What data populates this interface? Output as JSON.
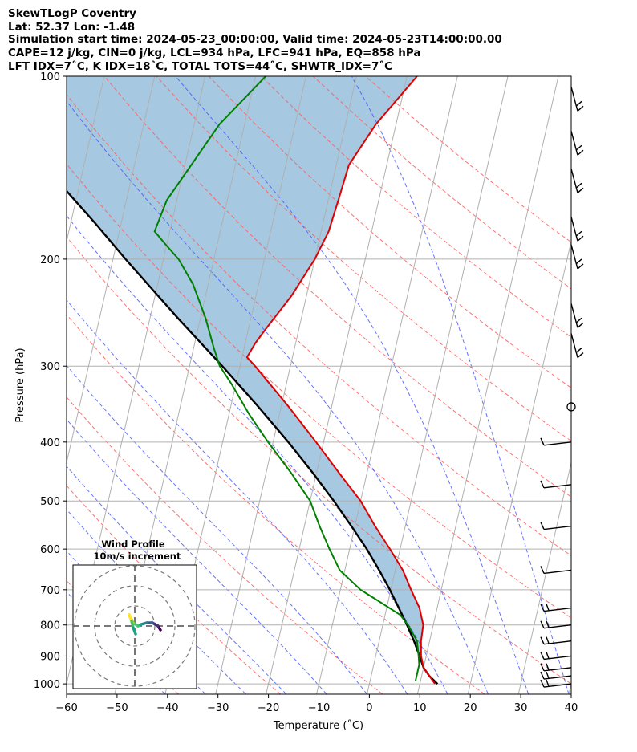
{
  "chart_data": {
    "type": "line",
    "title_lines": [
      "SkewTLogP Coventry",
      "Lat: 52.37   Lon: -1.48",
      "Simulation start time: 2024-05-23_00:00:00, Valid time: 2024-05-23T14:00:00.00",
      "CAPE=12 j/kg, CIN=0 j/kg, LCL=934 hPa, LFC=941 hPa, EQ=858 hPa",
      "LFT IDX=7˚C, K IDX=18˚C, TOTAL TOTS=44˚C, SHWTR_IDX=7˚C"
    ],
    "xlabel": "Temperature (˚C)",
    "ylabel": "Pressure (hPa)",
    "xlim": [
      -60,
      40
    ],
    "ylim": [
      1040,
      100
    ],
    "y_scale": "log",
    "skew": "skewed isotherms",
    "grid": true,
    "x_ticks": [
      -60,
      -50,
      -40,
      -30,
      -20,
      -10,
      0,
      10,
      20,
      30,
      40
    ],
    "y_ticks": [
      1000,
      900,
      800,
      700,
      600,
      500,
      400,
      300,
      200,
      100
    ],
    "series": [
      {
        "color": "#e00000",
        "points": [
          [
            1000,
            13
          ],
          [
            970,
            11.5
          ],
          [
            940,
            10
          ],
          [
            900,
            9
          ],
          [
            850,
            8.3
          ],
          [
            800,
            8
          ],
          [
            750,
            6.5
          ],
          [
            700,
            4
          ],
          [
            650,
            1.5
          ],
          [
            600,
            -2
          ],
          [
            550,
            -6
          ],
          [
            500,
            -10
          ],
          [
            450,
            -15.5
          ],
          [
            400,
            -21.5
          ],
          [
            350,
            -28.5
          ],
          [
            300,
            -37
          ],
          [
            290,
            -39
          ],
          [
            275,
            -38
          ],
          [
            260,
            -36.5
          ],
          [
            230,
            -33
          ],
          [
            200,
            -30
          ],
          [
            180,
            -28.5
          ],
          [
            160,
            -28
          ],
          [
            140,
            -27.5
          ],
          [
            120,
            -24
          ],
          [
            100,
            -18
          ]
        ]
      },
      {
        "color": "#008000",
        "points": [
          [
            990,
            9
          ],
          [
            960,
            9
          ],
          [
            930,
            9
          ],
          [
            900,
            8.5
          ],
          [
            850,
            7.5
          ],
          [
            800,
            5
          ],
          [
            770,
            3
          ],
          [
            730,
            -2
          ],
          [
            700,
            -6
          ],
          [
            650,
            -11
          ],
          [
            600,
            -14
          ],
          [
            550,
            -17
          ],
          [
            500,
            -20
          ],
          [
            450,
            -25
          ],
          [
            400,
            -31
          ],
          [
            360,
            -36
          ],
          [
            320,
            -41
          ],
          [
            300,
            -44
          ],
          [
            280,
            -46
          ],
          [
            250,
            -49
          ],
          [
            220,
            -53
          ],
          [
            200,
            -57
          ],
          [
            190,
            -60
          ],
          [
            180,
            -63
          ],
          [
            160,
            -62
          ],
          [
            120,
            -55
          ],
          [
            100,
            -48
          ]
        ]
      },
      {
        "color": "#000000",
        "points": [
          [
            1000,
            13.5
          ],
          [
            970,
            11.5
          ],
          [
            940,
            10
          ],
          [
            900,
            8.7
          ],
          [
            850,
            6.9
          ],
          [
            800,
            4.8
          ],
          [
            750,
            2.4
          ],
          [
            700,
            -0.2
          ],
          [
            650,
            -3.2
          ],
          [
            600,
            -6.6
          ],
          [
            550,
            -10.7
          ],
          [
            500,
            -15.3
          ],
          [
            450,
            -20.7
          ],
          [
            400,
            -27
          ],
          [
            350,
            -34.5
          ],
          [
            300,
            -43.5
          ],
          [
            250,
            -54.5
          ],
          [
            200,
            -67.5
          ],
          [
            175,
            -75
          ],
          [
            150,
            -84
          ],
          [
            125,
            -94
          ],
          [
            100,
            -107
          ]
        ]
      }
    ],
    "wind_barbs": [
      {
        "p": 1000,
        "barb": "full barbs"
      },
      {
        "p": 970,
        "barb": "full barbs"
      },
      {
        "p": 940,
        "barb": "full barbs"
      },
      {
        "p": 900,
        "barb": "full barbs"
      },
      {
        "p": 850,
        "barb": "full barbs"
      },
      {
        "p": 800,
        "barb": "full barbs"
      },
      {
        "p": 750,
        "barb": "full barbs"
      },
      {
        "p": 650,
        "barb": "full barbs"
      },
      {
        "p": 550,
        "barb": "full barbs"
      },
      {
        "p": 470,
        "barb": "full barbs"
      },
      {
        "p": 400,
        "barb": "full barbs"
      },
      {
        "p": 350,
        "barb": "calm"
      },
      {
        "p": 280,
        "barb": "full barbs"
      },
      {
        "p": 250,
        "barb": "full barbs"
      },
      {
        "p": 200,
        "barb": "full barbs"
      },
      {
        "p": 180,
        "barb": "full barbs"
      },
      {
        "p": 150,
        "barb": "full barbs"
      },
      {
        "p": 130,
        "barb": "full barbs"
      },
      {
        "p": 110,
        "barb": "full barbs"
      }
    ],
    "wind_profile_inset": {
      "title": "Wind Profile",
      "subtitle": "10m/s increment",
      "rings": 3,
      "colors": "viridis"
    }
  }
}
